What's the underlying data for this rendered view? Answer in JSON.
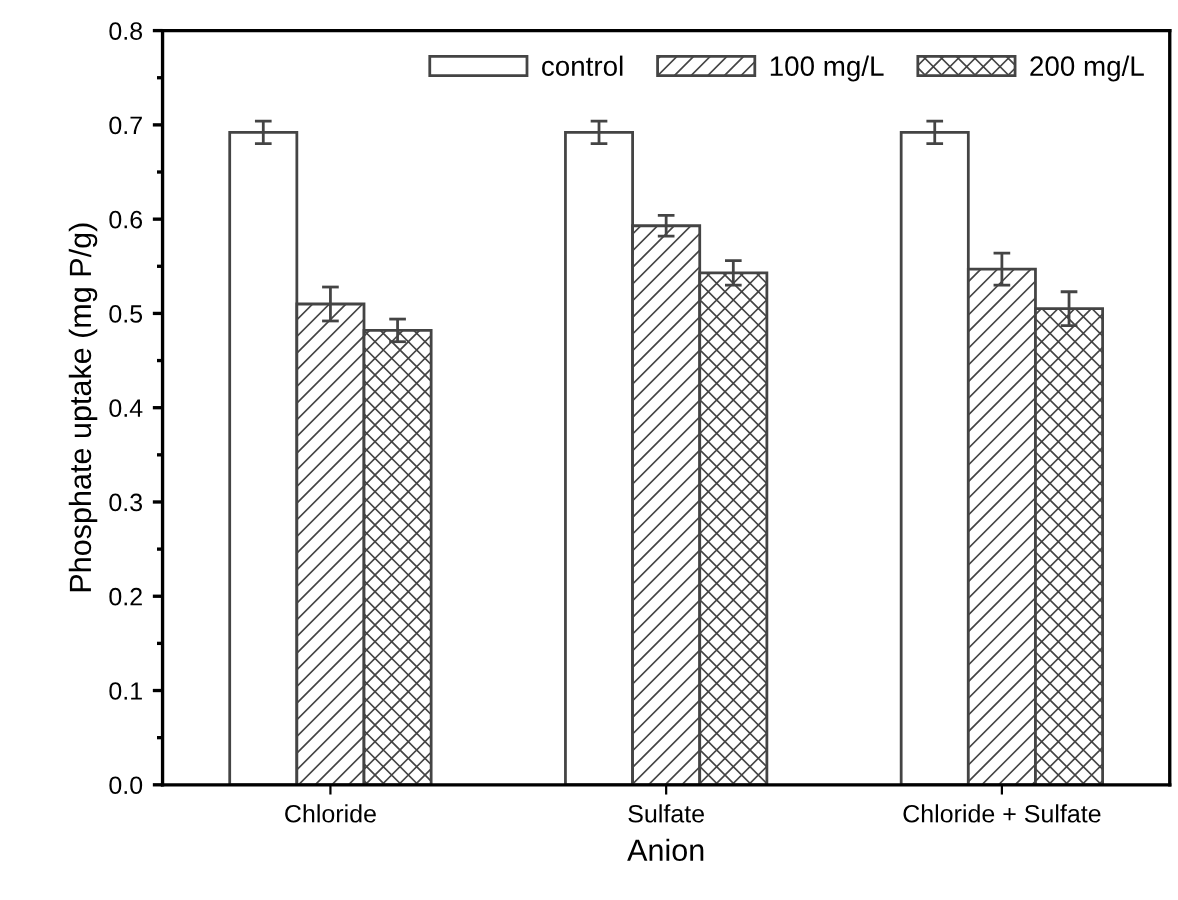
{
  "chart_data": {
    "type": "bar",
    "xlabel": "Anion",
    "ylabel": "Phosphate uptake (mg P/g)",
    "categories": [
      "Chloride",
      "Sulfate",
      "Chloride + Sulfate"
    ],
    "series": [
      {
        "name": "control",
        "color": "#ffffff",
        "values": [
          0.692,
          0.692,
          0.692
        ],
        "errors": [
          0.012,
          0.012,
          0.012
        ]
      },
      {
        "name": "100 mg/L",
        "color": "#444444",
        "values": [
          0.51,
          0.593,
          0.547
        ],
        "errors": [
          0.018,
          0.011,
          0.017
        ]
      },
      {
        "name": "200 mg/L",
        "color": "#444444",
        "values": [
          0.482,
          0.543,
          0.505
        ],
        "errors": [
          0.012,
          0.013,
          0.018
        ]
      }
    ],
    "ylim": [
      0,
      0.8
    ],
    "yticks": [
      {
        "value": 0,
        "label": "0.0"
      },
      0.1,
      0.2,
      0.3,
      0.4,
      0.5,
      0.6,
      0.7,
      0.8
    ],
    "grid": false,
    "legend": "top right"
  }
}
